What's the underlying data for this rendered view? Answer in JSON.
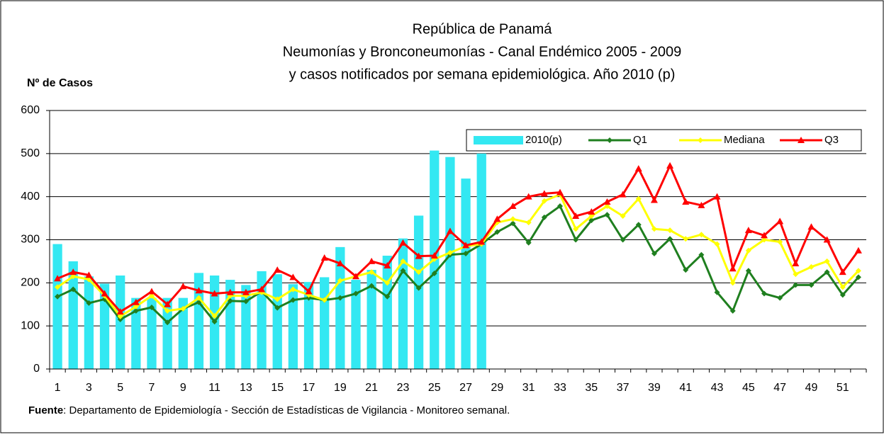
{
  "chart_data": {
    "type": "combo",
    "title": [
      "República de Panamá",
      "Neumonías y Bronconeumonías - Canal Endémico 2005 - 2009",
      "y casos notificados por semana epidemiológica. Año 2010 (p)"
    ],
    "y_label": "Nº de Casos",
    "source": {
      "label": "Fuente",
      "text": ": Departamento de Epidemiología - Sección de Estadísticas de Vigilancia - Monitoreo semanal."
    },
    "categories": [
      1,
      null,
      3,
      null,
      5,
      null,
      7,
      null,
      9,
      null,
      11,
      null,
      13,
      null,
      15,
      null,
      17,
      null,
      19,
      null,
      21,
      null,
      23,
      null,
      25,
      null,
      27,
      null,
      29,
      null,
      31,
      null,
      33,
      null,
      35,
      null,
      37,
      null,
      39,
      null,
      41,
      null,
      43,
      null,
      45,
      null,
      47,
      null,
      49,
      null,
      51,
      null
    ],
    "ylim": [
      0,
      600
    ],
    "yticks": [
      0,
      100,
      200,
      300,
      400,
      500,
      600
    ],
    "grid": true,
    "series": [
      {
        "name": "2010(p)",
        "kind": "bar",
        "color": "#33e8f2",
        "values": [
          290,
          250,
          215,
          198,
          217,
          165,
          165,
          165,
          165,
          223,
          217,
          207,
          195,
          227,
          220,
          197,
          202,
          213,
          283,
          207,
          230,
          263,
          303,
          356,
          507,
          492,
          442,
          500,
          null,
          null,
          null,
          null,
          null,
          null,
          null,
          null,
          null,
          null,
          null,
          null,
          null,
          null,
          null,
          null,
          null,
          null,
          null,
          null,
          null,
          null,
          null,
          null
        ]
      },
      {
        "name": "Q1",
        "kind": "line",
        "marker": "diamond",
        "color": "#1f7f1f",
        "values": [
          168,
          185,
          153,
          162,
          115,
          135,
          143,
          108,
          140,
          155,
          110,
          158,
          157,
          180,
          142,
          160,
          165,
          160,
          165,
          175,
          193,
          168,
          228,
          188,
          222,
          265,
          268,
          290,
          318,
          338,
          293,
          352,
          378,
          300,
          345,
          358,
          300,
          335,
          268,
          302,
          230,
          265,
          178,
          135,
          228,
          175,
          165,
          195,
          195,
          225,
          172,
          213
        ]
      },
      {
        "name": "Mediana",
        "kind": "line",
        "marker": "diamond",
        "color": "#ffff00",
        "values": [
          190,
          215,
          208,
          170,
          122,
          145,
          170,
          135,
          140,
          165,
          123,
          170,
          170,
          178,
          162,
          185,
          172,
          160,
          205,
          215,
          225,
          200,
          250,
          225,
          255,
          270,
          285,
          290,
          340,
          348,
          340,
          390,
          405,
          325,
          355,
          378,
          355,
          395,
          325,
          322,
          302,
          312,
          290,
          200,
          275,
          300,
          295,
          220,
          237,
          250,
          190,
          228
        ]
      },
      {
        "name": "Q3",
        "kind": "line",
        "marker": "triangle",
        "color": "#ff0000",
        "values": [
          210,
          225,
          218,
          175,
          133,
          155,
          180,
          150,
          192,
          182,
          175,
          178,
          178,
          185,
          230,
          213,
          180,
          258,
          245,
          215,
          250,
          240,
          293,
          262,
          263,
          320,
          287,
          295,
          348,
          378,
          400,
          407,
          410,
          355,
          365,
          388,
          405,
          465,
          392,
          472,
          388,
          380,
          400,
          233,
          322,
          310,
          343,
          245,
          330,
          300,
          225,
          275
        ]
      }
    ]
  }
}
